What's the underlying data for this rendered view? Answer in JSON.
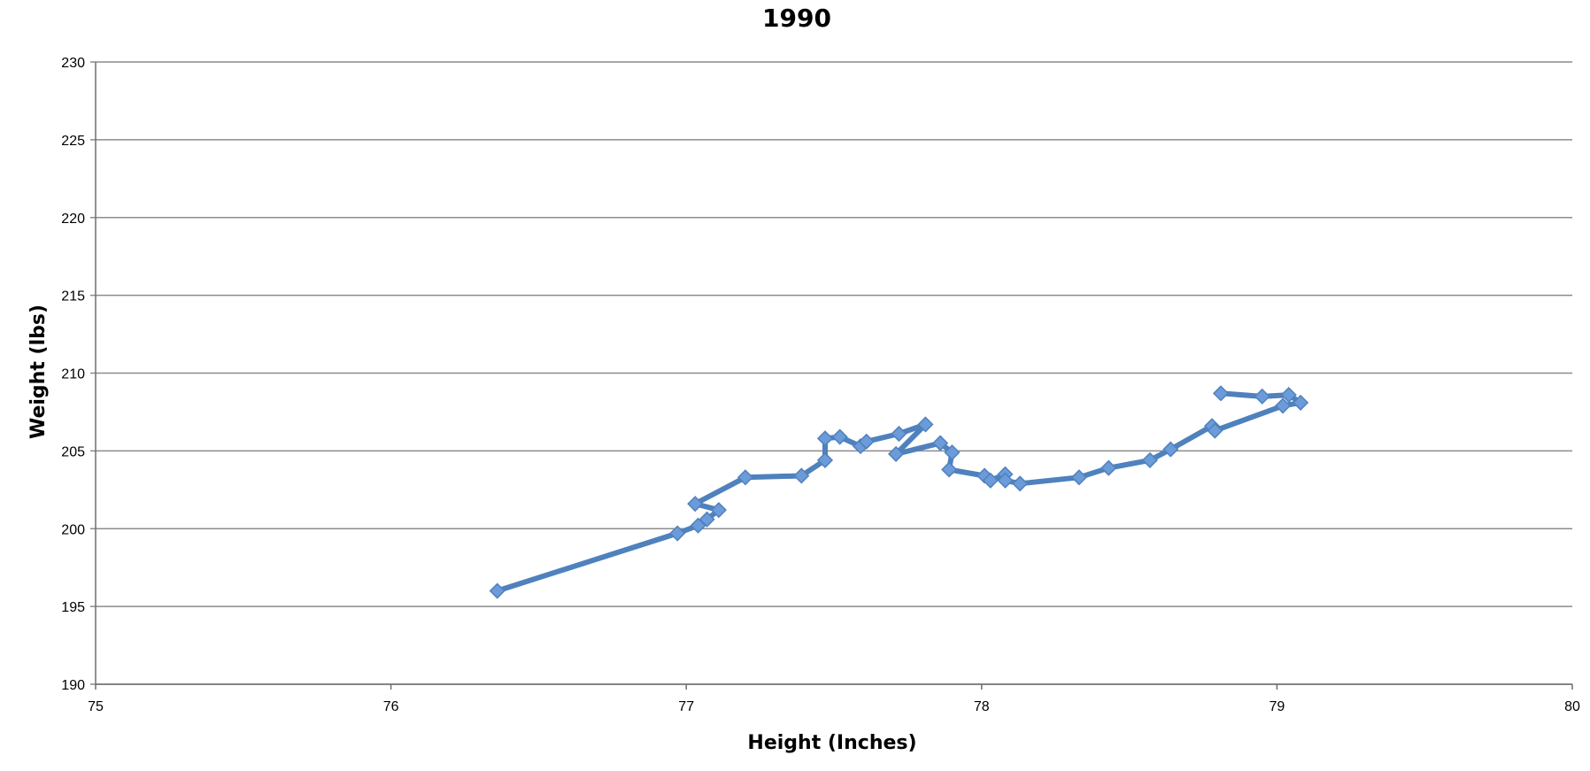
{
  "chart_data": {
    "type": "line",
    "title": "1990",
    "xlabel": "Height (Inches)",
    "ylabel": "Weight (lbs)",
    "xlim": [
      75,
      80
    ],
    "ylim": [
      190,
      230
    ],
    "x_ticks": [
      "75",
      "76",
      "77",
      "78",
      "79",
      "80"
    ],
    "y_ticks": [
      "190",
      "195",
      "200",
      "205",
      "210",
      "215",
      "220",
      "225",
      "230"
    ],
    "grid": true,
    "legend": "none",
    "series_color": "#4f81bd",
    "marker_color": "#6b9bd8",
    "series": [
      {
        "x": [
          76.36,
          76.97,
          77.04,
          77.07,
          77.11,
          77.03,
          77.2,
          77.39,
          77.47,
          77.47,
          77.52,
          77.59,
          77.61,
          77.72,
          77.81,
          77.71,
          77.86,
          77.9,
          77.89,
          78.01,
          78.03,
          78.08,
          78.08,
          78.13,
          78.33,
          78.43,
          78.57,
          78.64,
          78.78,
          78.79,
          79.02,
          79.08,
          79.04,
          78.95,
          78.81
        ],
        "y": [
          196.0,
          199.7,
          200.2,
          200.6,
          201.2,
          201.6,
          203.3,
          203.4,
          204.4,
          205.8,
          205.9,
          205.3,
          205.6,
          206.1,
          206.7,
          204.8,
          205.5,
          204.9,
          203.8,
          203.4,
          203.1,
          203.5,
          203.1,
          202.9,
          203.3,
          203.9,
          204.4,
          205.1,
          206.6,
          206.3,
          207.9,
          208.1,
          208.6,
          208.5,
          208.7
        ]
      }
    ]
  }
}
